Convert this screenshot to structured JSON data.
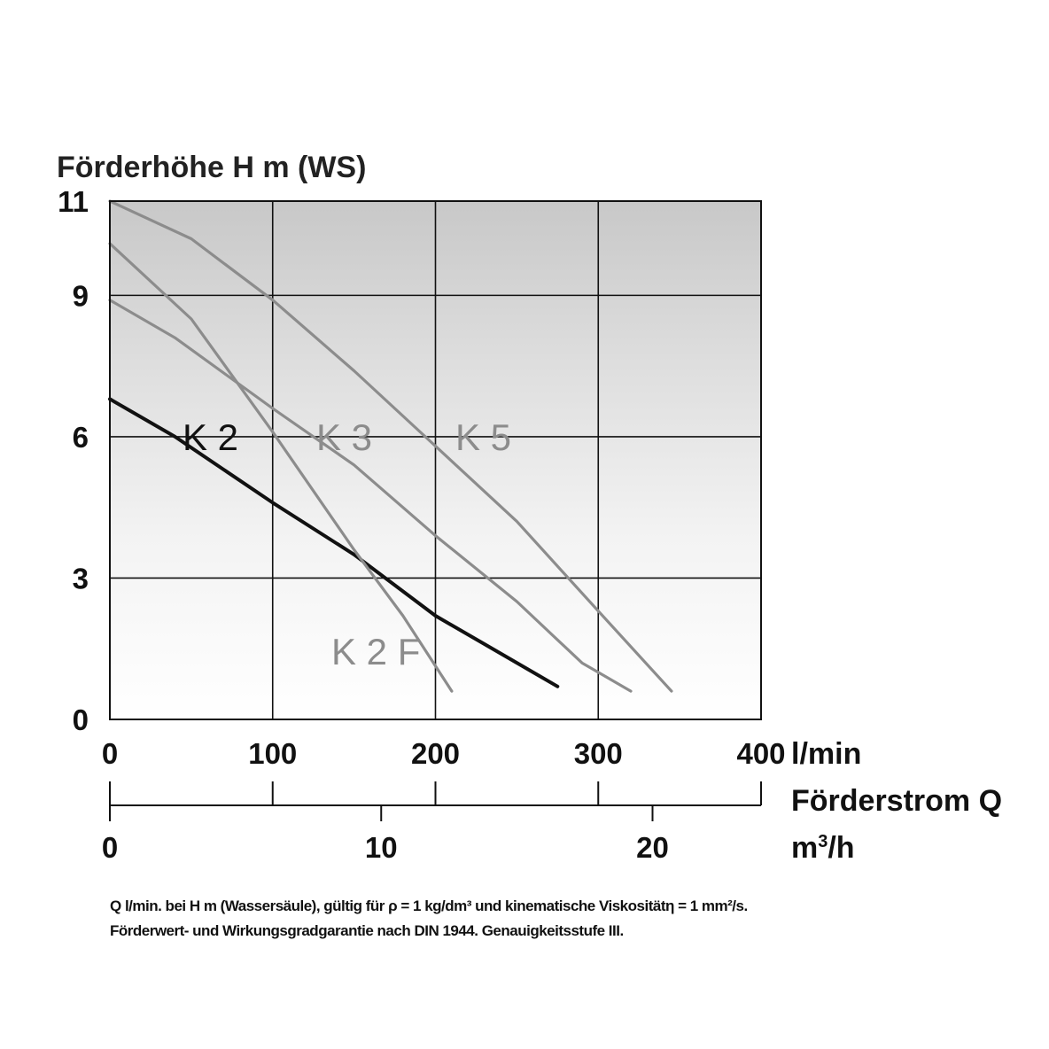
{
  "chart_data": {
    "type": "line",
    "ylabel": "Förderhöhe H m (WS)",
    "xlabel": "Förderstrom Q",
    "x_unit_primary": "l/min",
    "x_unit_secondary": "m³/h",
    "x_unit_secondary_base": "m",
    "x_unit_secondary_exp": "3",
    "x_unit_secondary_rest": "/h",
    "ylim": [
      0,
      11
    ],
    "xlim": [
      0,
      400
    ],
    "y_ticks": [
      0,
      3,
      6,
      9,
      11
    ],
    "x_ticks_primary": [
      0,
      100,
      200,
      300,
      400
    ],
    "x_ticks_secondary": [
      0,
      10,
      20
    ],
    "grid": true,
    "series": [
      {
        "name": "K 2",
        "color": "#111111",
        "x": [
          0,
          40,
          100,
          150,
          200,
          230,
          275
        ],
        "y": [
          6.8,
          6.0,
          4.6,
          3.5,
          2.2,
          1.6,
          0.7
        ]
      },
      {
        "name": "K 3",
        "color": "#8c8c8c",
        "x": [
          0,
          40,
          100,
          150,
          200,
          250,
          290,
          320
        ],
        "y": [
          8.9,
          8.1,
          6.6,
          5.4,
          3.9,
          2.5,
          1.2,
          0.6
        ]
      },
      {
        "name": "K 5",
        "color": "#8c8c8c",
        "x": [
          0,
          50,
          100,
          150,
          200,
          250,
          300,
          345
        ],
        "y": [
          11.0,
          10.2,
          8.9,
          7.4,
          5.8,
          4.2,
          2.3,
          0.6
        ]
      },
      {
        "name": "K 2 F",
        "color": "#8c8c8c",
        "x": [
          0,
          50,
          100,
          150,
          180,
          210
        ],
        "y": [
          10.1,
          8.5,
          6.1,
          3.6,
          2.2,
          0.6
        ]
      }
    ]
  },
  "footnote": {
    "line1": "Q l/min. bei H m (Wassersäule), gültig für ρ = 1 kg/dm³ und kinematische Viskositätη = 1 mm²/s.",
    "line2": "Förderwert- und Wirkungsgradgarantie nach DIN 1944. Genauigkeitsstufe III."
  }
}
